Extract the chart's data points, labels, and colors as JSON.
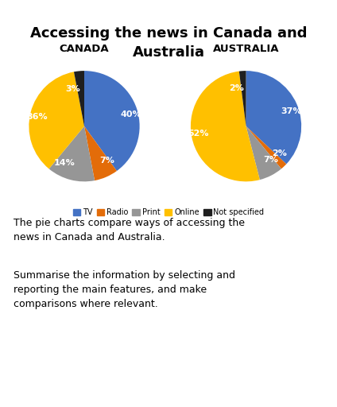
{
  "title": "Accessing the news in Canada and\nAustralia",
  "title_fontsize": 13,
  "canada_label": "CANADA",
  "australia_label": "AUSTRALIA",
  "categories": [
    "TV",
    "Radio",
    "Print",
    "Online",
    "Not specified"
  ],
  "colors": [
    "#4472C4",
    "#E36C09",
    "#969696",
    "#FFC000",
    "#1F1F1F"
  ],
  "canada_values": [
    40,
    7,
    14,
    36,
    3
  ],
  "australia_values": [
    37,
    2,
    7,
    52,
    2
  ],
  "canada_labels": [
    "40%",
    "7%",
    "14%",
    "36%",
    "3%"
  ],
  "australia_labels": [
    "37%",
    "2%",
    "7%",
    "52%",
    "2%"
  ],
  "text_line1": "The pie charts compare ways of accessing the\nnews in Canada and Australia.",
  "text_line2": "Summarise the information by selecting and\nreporting the main features, and make\ncomparisons where relevant.",
  "bg_color": "#FFFFFF",
  "label_fontsize": 8,
  "sublabel_fontsize": 9.5
}
